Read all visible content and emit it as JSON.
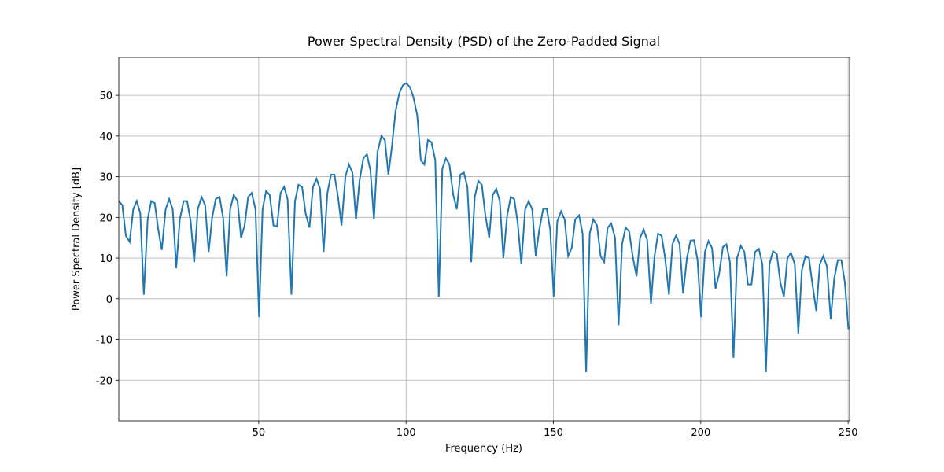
{
  "chart_data": {
    "type": "line",
    "title": "Power Spectral Density (PSD) of the Zero-Padded Signal",
    "x_label": "Frequency (Hz)",
    "y_label": "Power Spectral Density [dB]",
    "xlim": [
      2.5,
      250.5
    ],
    "ylim": [
      -30,
      59.3
    ],
    "xticks": [
      50,
      100,
      150,
      200,
      250
    ],
    "yticks": [
      -20,
      -10,
      0,
      10,
      20,
      30,
      40,
      50
    ],
    "grid": true,
    "x": [
      2.5,
      3.7,
      4.9,
      6.2,
      7.4,
      8.6,
      9.8,
      11.0,
      12.3,
      13.5,
      14.7,
      15.9,
      17.1,
      18.4,
      19.6,
      20.8,
      22.0,
      23.2,
      24.5,
      25.7,
      26.9,
      28.1,
      29.3,
      30.6,
      31.8,
      33.0,
      34.2,
      35.4,
      36.7,
      37.9,
      39.1,
      40.3,
      41.5,
      42.8,
      44.0,
      45.2,
      46.4,
      47.6,
      48.9,
      50.1,
      51.3,
      52.5,
      53.7,
      55.0,
      56.2,
      57.4,
      58.6,
      59.8,
      61.1,
      62.3,
      63.5,
      64.7,
      65.9,
      67.2,
      68.4,
      69.6,
      70.8,
      72.0,
      73.3,
      74.5,
      75.7,
      76.9,
      78.1,
      79.4,
      80.6,
      81.8,
      83.0,
      84.2,
      85.5,
      86.7,
      87.9,
      89.1,
      90.3,
      91.6,
      92.8,
      94.0,
      95.2,
      96.4,
      97.7,
      98.9,
      100.1,
      101.3,
      102.5,
      103.8,
      105.0,
      106.2,
      107.4,
      108.6,
      109.9,
      111.1,
      112.3,
      113.5,
      114.7,
      116.0,
      117.2,
      118.4,
      119.6,
      120.8,
      122.1,
      123.3,
      124.5,
      125.7,
      126.9,
      128.2,
      129.4,
      130.6,
      131.8,
      133.0,
      134.3,
      135.5,
      136.7,
      137.9,
      139.1,
      140.4,
      141.6,
      142.8,
      144.0,
      145.2,
      146.5,
      147.7,
      148.9,
      150.1,
      151.3,
      152.6,
      153.8,
      155.0,
      156.2,
      157.4,
      158.7,
      159.9,
      161.1,
      162.3,
      163.5,
      164.8,
      166.0,
      167.2,
      168.4,
      169.6,
      170.9,
      172.1,
      173.3,
      174.5,
      175.7,
      177.0,
      178.2,
      179.4,
      180.6,
      181.8,
      183.1,
      184.3,
      185.5,
      186.7,
      187.9,
      189.2,
      190.4,
      191.6,
      192.8,
      194.0,
      195.3,
      196.5,
      197.7,
      198.9,
      200.1,
      201.4,
      202.6,
      203.8,
      205.0,
      206.2,
      207.5,
      208.7,
      209.9,
      211.1,
      212.3,
      213.6,
      214.8,
      216.0,
      217.2,
      218.4,
      219.7,
      220.9,
      222.1,
      223.3,
      224.5,
      225.8,
      227.0,
      228.2,
      229.4,
      230.6,
      231.9,
      233.1,
      234.3,
      235.5,
      236.7,
      238.0,
      239.2,
      240.4,
      241.6,
      242.8,
      244.1,
      245.3,
      246.5,
      247.7,
      248.9,
      250.1
    ],
    "series": [
      {
        "color": "#1f77b4",
        "values": [
          24,
          23,
          15.5,
          14,
          22,
          24,
          21,
          1,
          19.5,
          24,
          23.5,
          17,
          12,
          22,
          24.5,
          22,
          7.5,
          19.5,
          24,
          24,
          19,
          9,
          22,
          25,
          23,
          11.5,
          20,
          24.5,
          25,
          20,
          5.5,
          22,
          25.5,
          24,
          15,
          18,
          25,
          26,
          22,
          -4.5,
          22,
          26.5,
          25.5,
          18,
          17.8,
          26,
          27.5,
          24.5,
          1,
          24,
          28,
          27.5,
          21,
          17.5,
          27.5,
          29.5,
          27,
          11.5,
          26,
          30.5,
          30.5,
          25,
          18,
          30,
          33,
          31,
          19.5,
          29,
          34.5,
          35.5,
          31.5,
          19.5,
          36,
          40,
          39,
          30.5,
          37.5,
          46,
          50.5,
          52.5,
          53,
          52,
          49.5,
          45,
          34,
          33,
          39,
          38.5,
          34,
          0.5,
          32,
          34.5,
          33,
          25.5,
          22,
          30.5,
          31,
          27.5,
          9,
          25,
          29,
          28,
          20.5,
          15,
          25.5,
          27,
          24,
          10,
          20.5,
          25,
          24.5,
          18.5,
          8.5,
          22,
          24,
          22,
          10.5,
          17,
          22,
          22.2,
          17,
          0.5,
          19,
          21.5,
          19.5,
          10.5,
          12.5,
          19.5,
          20.5,
          16,
          -18,
          16,
          19.5,
          18,
          10.5,
          9,
          17.5,
          18.5,
          15,
          -6.5,
          13.5,
          17.5,
          16.5,
          10,
          5.5,
          15,
          17,
          14.5,
          -1.2,
          10.5,
          16,
          15.5,
          10,
          1,
          13.5,
          15.5,
          13.5,
          1.3,
          10,
          14.3,
          14.4,
          9.5,
          -4.5,
          11.5,
          14.2,
          12.5,
          2.5,
          6,
          12.7,
          13.4,
          9,
          -14.5,
          10,
          13,
          11.5,
          3.5,
          3.5,
          11.5,
          12.3,
          8.5,
          -18,
          8.5,
          11.7,
          11,
          4,
          0.5,
          10,
          11.3,
          8.5,
          -8.5,
          7,
          10.5,
          10,
          3,
          -3,
          8.5,
          10.5,
          8,
          -5,
          5,
          9.5,
          9.5,
          4,
          -7.5
        ]
      }
    ]
  }
}
